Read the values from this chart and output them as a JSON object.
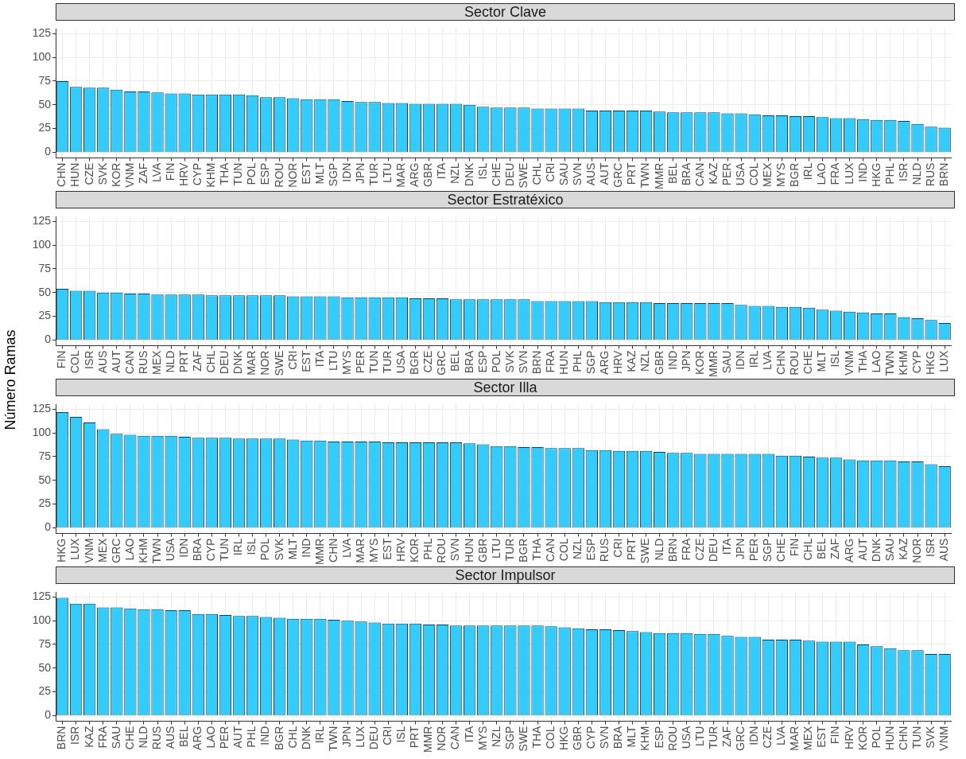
{
  "chart_data": [
    {
      "type": "bar",
      "title": "Sector Clave",
      "color": "#33ccff",
      "grid": true,
      "ylim": [
        -6,
        130
      ],
      "yticks": [
        0,
        25,
        50,
        75,
        100,
        125
      ],
      "categories": [
        "CHN",
        "HUN",
        "CZE",
        "SVK",
        "KOR",
        "VNM",
        "ZAF",
        "LVA",
        "FIN",
        "HRV",
        "CYP",
        "KHM",
        "THA",
        "TUN",
        "POL",
        "ESP",
        "ROU",
        "NOR",
        "EST",
        "MLT",
        "SGP",
        "IDN",
        "JPN",
        "TUR",
        "LTU",
        "MAR",
        "ARG",
        "GBR",
        "ITA",
        "NZL",
        "DNK",
        "ISL",
        "CHE",
        "DEU",
        "SWE",
        "CHL",
        "CRI",
        "SAU",
        "SVN",
        "AUS",
        "AUT",
        "GRC",
        "PRT",
        "TWN",
        "MMR",
        "BEL",
        "BRA",
        "CAN",
        "KAZ",
        "PER",
        "USA",
        "COL",
        "MEX",
        "MYS",
        "BGR",
        "IRL",
        "LAO",
        "FRA",
        "LUX",
        "IND",
        "HKG",
        "PHL",
        "ISR",
        "NLD",
        "RUS",
        "BRN"
      ],
      "values": [
        75,
        69,
        68,
        68,
        66,
        64,
        64,
        63,
        62,
        62,
        61,
        61,
        61,
        61,
        60,
        58,
        58,
        57,
        56,
        56,
        56,
        54,
        53,
        53,
        52,
        52,
        51,
        51,
        51,
        51,
        50,
        48,
        47,
        47,
        47,
        46,
        46,
        46,
        46,
        44,
        44,
        44,
        44,
        44,
        43,
        42,
        42,
        42,
        42,
        41,
        41,
        40,
        39,
        39,
        38,
        38,
        37,
        36,
        36,
        35,
        34,
        34,
        33,
        30,
        27,
        26
      ]
    },
    {
      "type": "bar",
      "title": "Sector Estratéxico",
      "color": "#33ccff",
      "grid": true,
      "ylim": [
        -6,
        130
      ],
      "yticks": [
        0,
        25,
        50,
        75,
        100,
        125
      ],
      "categories": [
        "FIN",
        "COL",
        "ISR",
        "AUS",
        "AUT",
        "CAN",
        "RUS",
        "MEX",
        "NLD",
        "PRT",
        "ZAF",
        "CHL",
        "DEU",
        "DNK",
        "MAR",
        "NOR",
        "SWE",
        "CRI",
        "EST",
        "ITA",
        "LTU",
        "MYS",
        "PER",
        "TUN",
        "TUR",
        "USA",
        "BGR",
        "CZE",
        "GRC",
        "BEL",
        "BRA",
        "ESP",
        "POL",
        "SVK",
        "SVN",
        "BRN",
        "FRA",
        "HUN",
        "PHL",
        "SGP",
        "ARG",
        "HRV",
        "KAZ",
        "NZL",
        "GBR",
        "IND",
        "JPN",
        "KOR",
        "MMR",
        "SAU",
        "IDN",
        "IRL",
        "LVA",
        "CHN",
        "ROU",
        "CHE",
        "MLT",
        "ISL",
        "VNM",
        "THA",
        "LAO",
        "TWN",
        "KHM",
        "CYP",
        "HKG",
        "LUX"
      ],
      "values": [
        54,
        52,
        52,
        50,
        50,
        49,
        49,
        48,
        48,
        48,
        48,
        47,
        47,
        47,
        47,
        47,
        47,
        46,
        46,
        46,
        46,
        45,
        45,
        45,
        45,
        45,
        44,
        44,
        44,
        43,
        43,
        43,
        43,
        43,
        43,
        41,
        41,
        41,
        41,
        41,
        40,
        40,
        40,
        40,
        39,
        39,
        39,
        39,
        39,
        39,
        37,
        36,
        36,
        35,
        35,
        34,
        32,
        31,
        30,
        29,
        28,
        28,
        24,
        23,
        21,
        18
      ]
    },
    {
      "type": "bar",
      "title": "Sector Illa",
      "ylabel": "Número Ramas",
      "color": "#33ccff",
      "grid": true,
      "ylim": [
        -6,
        130
      ],
      "yticks": [
        0,
        25,
        50,
        75,
        100,
        125
      ],
      "categories": [
        "HKG",
        "LUX",
        "VNM",
        "MEX",
        "GRC",
        "LAO",
        "KHM",
        "TWN",
        "USA",
        "IDN",
        "BRA",
        "CYP",
        "TUN",
        "IRL",
        "ISL",
        "POL",
        "SVK",
        "MLT",
        "IND",
        "MMR",
        "CHN",
        "LVA",
        "MAR",
        "MYS",
        "EST",
        "HRV",
        "KOR",
        "PHL",
        "ROU",
        "SVN",
        "HUN",
        "GBR",
        "LTU",
        "TUR",
        "BGR",
        "THA",
        "CAN",
        "COL",
        "NZL",
        "ESP",
        "RUS",
        "CRI",
        "PRT",
        "SWE",
        "NLD",
        "BRN",
        "FRA",
        "CZE",
        "DEU",
        "ITA",
        "JPN",
        "PER",
        "SGP",
        "CHE",
        "FIN",
        "CHL",
        "BEL",
        "ZAF",
        "ARG",
        "AUT",
        "DNK",
        "SAU",
        "KAZ",
        "NOR",
        "ISR",
        "AUS"
      ],
      "values": [
        122,
        117,
        111,
        104,
        99,
        98,
        97,
        97,
        97,
        96,
        95,
        95,
        95,
        94,
        94,
        94,
        94,
        93,
        92,
        92,
        91,
        91,
        91,
        91,
        90,
        90,
        90,
        90,
        90,
        90,
        89,
        88,
        86,
        86,
        85,
        85,
        84,
        84,
        84,
        82,
        82,
        81,
        81,
        81,
        80,
        79,
        79,
        78,
        78,
        78,
        78,
        78,
        78,
        76,
        76,
        75,
        74,
        74,
        72,
        71,
        71,
        71,
        70,
        70,
        67,
        65
      ]
    },
    {
      "type": "bar",
      "title": "Sector Impulsor",
      "color": "#33ccff",
      "grid": true,
      "ylim": [
        -6,
        130
      ],
      "yticks": [
        0,
        25,
        50,
        75,
        100,
        125
      ],
      "categories": [
        "BRN",
        "ISR",
        "KAZ",
        "FRA",
        "SAU",
        "CHE",
        "NLD",
        "RUS",
        "AUS",
        "BEL",
        "ARG",
        "LAO",
        "PER",
        "AUT",
        "PHL",
        "IND",
        "BGR",
        "CHL",
        "DNK",
        "IRL",
        "TWN",
        "JPN",
        "LUX",
        "DEU",
        "CRI",
        "ISL",
        "PRT",
        "MMR",
        "NOR",
        "CAN",
        "ITA",
        "MYS",
        "NZL",
        "SGP",
        "SWE",
        "THA",
        "COL",
        "HKG",
        "GBR",
        "CYP",
        "SVN",
        "BRA",
        "MLT",
        "KHM",
        "ESP",
        "ROU",
        "USA",
        "LTU",
        "TUR",
        "ZAF",
        "GRC",
        "IDN",
        "CZE",
        "LVA",
        "MAR",
        "MEX",
        "EST",
        "FIN",
        "HRV",
        "KOR",
        "POL",
        "HUN",
        "CHN",
        "TUN",
        "SVK",
        "VNM"
      ],
      "values": [
        124,
        118,
        118,
        114,
        114,
        113,
        112,
        112,
        111,
        111,
        107,
        107,
        106,
        105,
        105,
        104,
        103,
        102,
        102,
        102,
        101,
        100,
        99,
        98,
        97,
        97,
        97,
        96,
        96,
        95,
        95,
        95,
        95,
        95,
        95,
        95,
        94,
        93,
        92,
        91,
        91,
        90,
        89,
        88,
        87,
        87,
        87,
        86,
        86,
        84,
        83,
        83,
        80,
        80,
        80,
        79,
        78,
        78,
        78,
        75,
        73,
        71,
        69,
        69,
        65,
        65
      ]
    }
  ]
}
